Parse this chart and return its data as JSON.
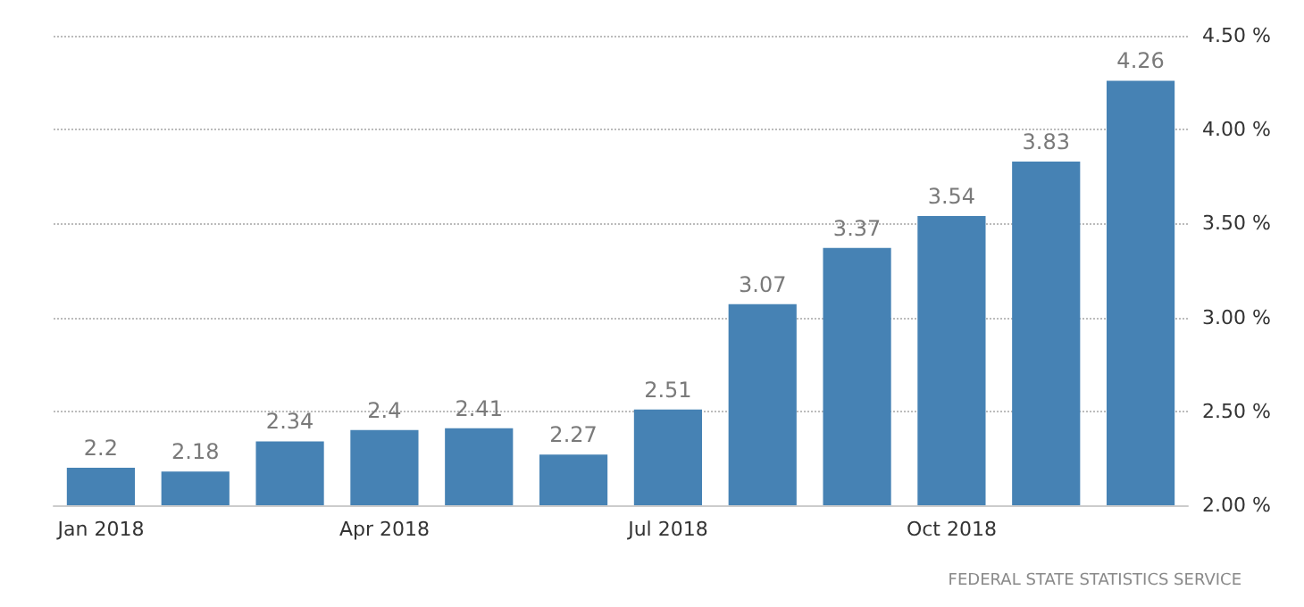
{
  "chart_data": {
    "type": "bar",
    "categories": [
      "Jan 2018",
      null,
      null,
      "Apr 2018",
      null,
      null,
      "Jul 2018",
      null,
      null,
      "Oct 2018",
      null,
      null
    ],
    "values": [
      2.2,
      2.18,
      2.34,
      2.4,
      2.41,
      2.27,
      2.51,
      3.07,
      3.37,
      3.54,
      3.83,
      4.26
    ],
    "color": "#4682b4",
    "ylim": [
      2,
      4.5
    ],
    "yticks": [
      {
        "value": 2,
        "label": "2.00 %"
      },
      {
        "value": 2.5,
        "label": "2.50 %"
      },
      {
        "value": 3,
        "label": "3.00 %"
      },
      {
        "value": 3.5,
        "label": "3.50 %"
      },
      {
        "value": 4,
        "label": "4.00 %"
      },
      {
        "value": 4.5,
        "label": "4.50 %"
      }
    ],
    "grid": "y",
    "data_labels": true,
    "annotations": [
      "FEDERAL STATE STATISTICS SERVICE"
    ]
  }
}
